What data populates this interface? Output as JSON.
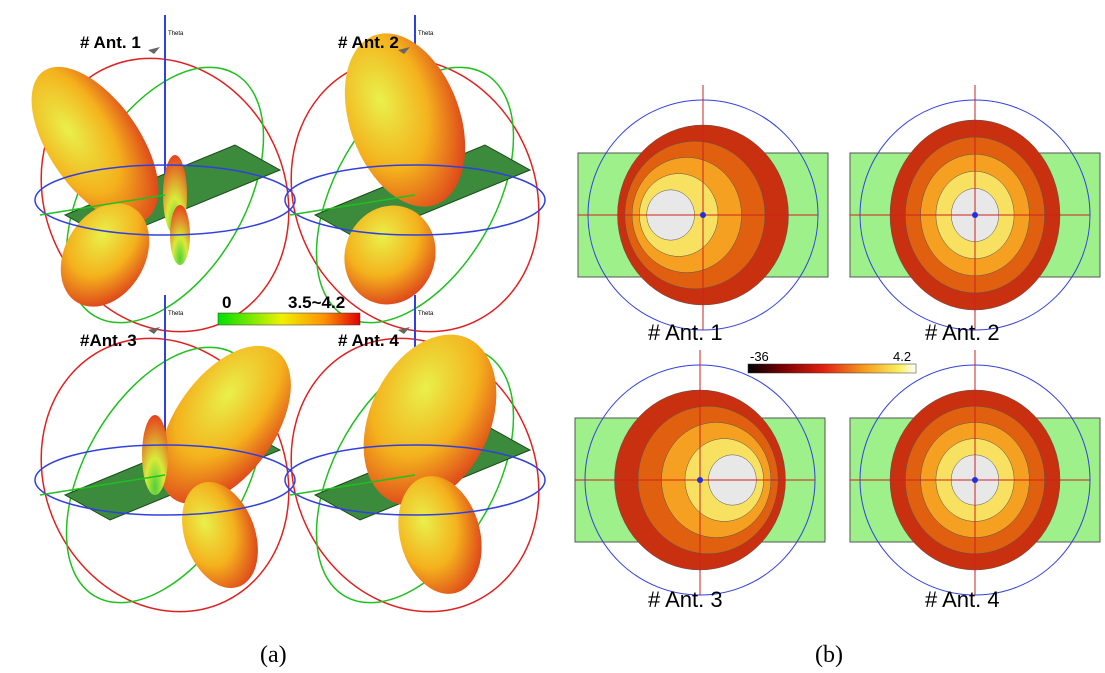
{
  "panel_a": {
    "caption": "(a)",
    "theta_label": "Theta",
    "plots": [
      {
        "label": "# Ant. 1"
      },
      {
        "label": "# Ant. 2"
      },
      {
        "label": "#Ant. 3"
      },
      {
        "label": "# Ant. 4"
      }
    ],
    "colorbar": {
      "min_label": "0",
      "max_label": "3.5~4.2"
    }
  },
  "panel_b": {
    "caption": "(b)",
    "plots": [
      {
        "label": "# Ant. 1"
      },
      {
        "label": "# Ant. 2"
      },
      {
        "label": "# Ant. 3"
      },
      {
        "label": "# Ant. 4"
      }
    ],
    "colorbar": {
      "min_label": "-36",
      "max_label": "4.2"
    }
  }
}
